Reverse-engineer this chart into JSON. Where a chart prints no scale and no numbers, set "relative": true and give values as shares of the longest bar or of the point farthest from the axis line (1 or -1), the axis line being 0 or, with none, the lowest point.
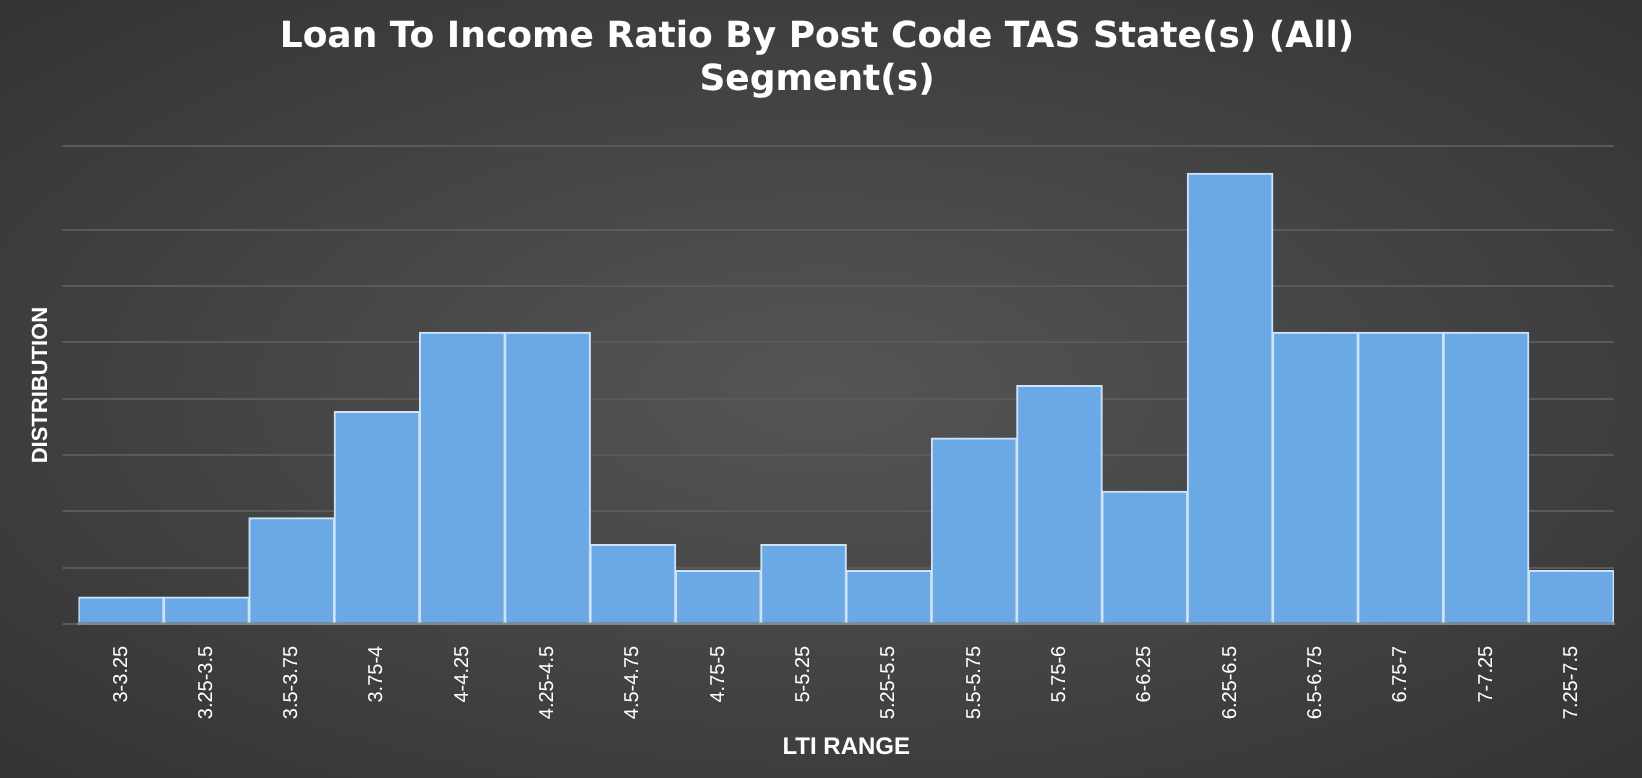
{
  "chart_data": {
    "type": "bar",
    "title": [
      "Loan To Income Ratio By Post Code TAS State(s) (All)",
      "Segment(s)"
    ],
    "xlabel": "LTI RANGE",
    "ylabel": "DISTRIBUTION",
    "relative": true,
    "grid": "y",
    "color": "#6aa9e6",
    "categories": [
      "3-3.25",
      "3.25-3.5",
      "3.5-3.75",
      "3.75-4",
      "4-4.25",
      "4.25-4.5",
      "4.5-4.75",
      "4.75-5",
      "5-5.25",
      "5.25-5.5",
      "5.5-5.75",
      "5.75-6",
      "6-6.25",
      "6.25-6.5",
      "6.5-6.75",
      "6.75-7",
      "7-7.25",
      "7.25-7.5"
    ],
    "values": [
      0.059,
      0.059,
      0.235,
      0.471,
      0.647,
      0.647,
      0.176,
      0.118,
      0.176,
      0.118,
      0.412,
      0.529,
      0.294,
      1,
      0.647,
      0.647,
      0.647,
      0.118
    ]
  }
}
